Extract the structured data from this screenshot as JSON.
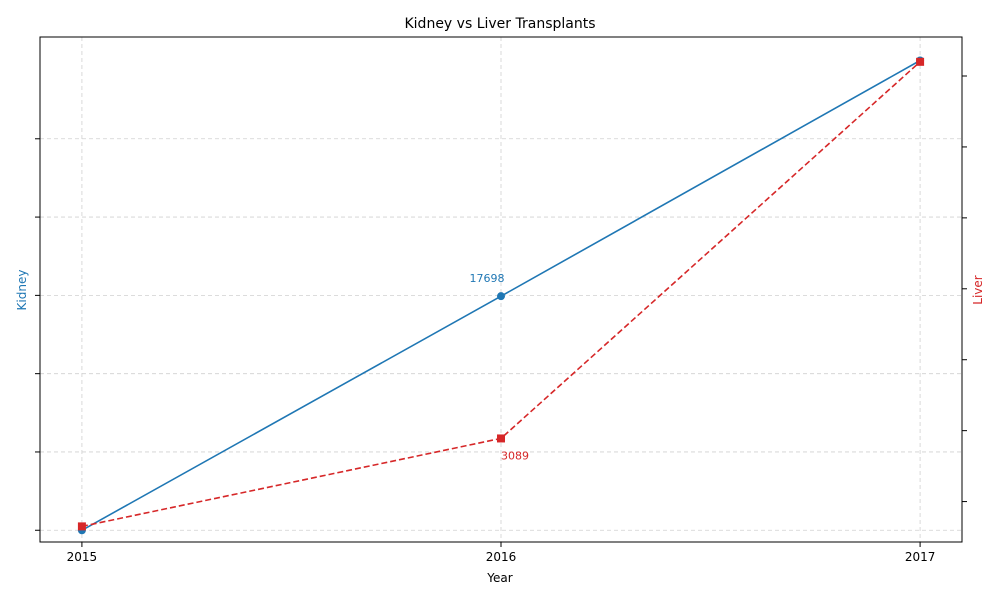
{
  "chart_data": {
    "type": "line",
    "title": "Kidney vs Liver Transplants",
    "xlabel": "Year",
    "x": [
      2015,
      2016,
      2017
    ],
    "xlim": [
      2014.9,
      2017.1
    ],
    "grid": true,
    "series": [
      {
        "name": "Kidney",
        "axis": "left",
        "values": [
          17100,
          17698,
          18300
        ],
        "ylim": [
          17070,
          18360
        ],
        "color": "#1f77b4",
        "line_style": "solid",
        "marker": "circle",
        "annotations": [
          {
            "x": 2016,
            "text": "17698"
          }
        ]
      },
      {
        "name": "Liver",
        "axis": "right",
        "values": [
          2965,
          3089,
          3620
        ],
        "ylim": [
          2943,
          3655
        ],
        "color": "#d62728",
        "line_style": "dashed",
        "marker": "square",
        "annotations": [
          {
            "x": 2016,
            "text": "3089"
          }
        ]
      }
    ]
  }
}
